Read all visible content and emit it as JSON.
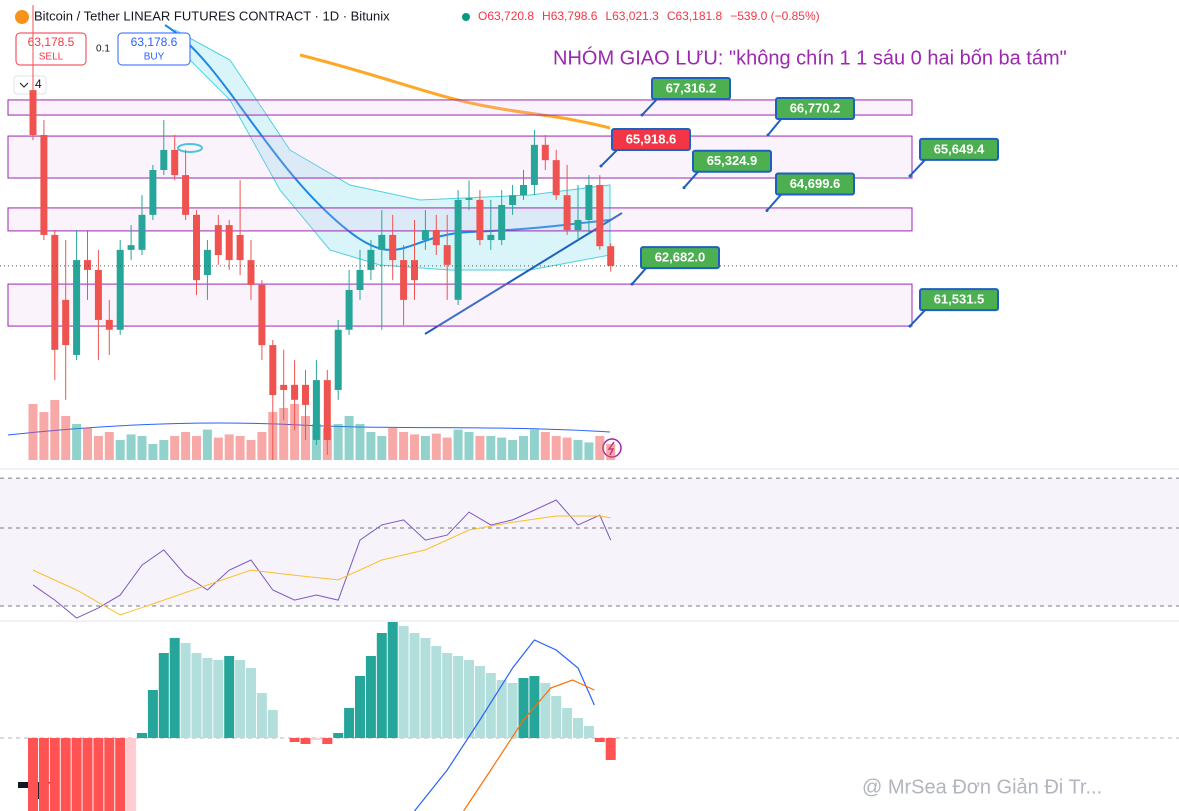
{
  "header": {
    "symbol": "Bitcoin / Tether LINEAR FUTURES CONTRACT · 1D · Bitunix",
    "ohlc": [
      "O63,720.8",
      "H63,798.6",
      "L63,021.3",
      "C63,181.8",
      "−539.0 (−0.85%)"
    ]
  },
  "trade": {
    "sell_price": "63,178.5",
    "sell": "SELL",
    "spread": "0.1",
    "buy_price": "63,178.6",
    "buy": "BUY"
  },
  "interval_control": "4",
  "annotation": "NHÓM GIAO LƯU: \"không chín 1 1 sáu 0 hai bốn ba tám\"",
  "watermark": "@ MrSea Đơn Giản Đi Tr...",
  "chart_data": [
    {
      "type": "candlestick",
      "colors": [
        "#26a69a",
        "#ef5350"
      ],
      "ylim": [
        57860,
        70470
      ],
      "open": [
        68000,
        66770,
        64030,
        62250,
        60740,
        63340,
        63070,
        61700,
        61430,
        63620,
        63620,
        64580,
        65810,
        66360,
        65670,
        64580,
        62930,
        64300,
        64300,
        64030,
        63340,
        62660,
        61010,
        59920,
        59920,
        59920,
        58410,
        60050,
        59780,
        61430,
        62520,
        63070,
        63620,
        64030,
        63340,
        63340,
        63890,
        64165,
        63750,
        62250,
        64990,
        64990,
        63890,
        63890,
        64850,
        65120,
        65400,
        66500,
        66080,
        65120,
        64165,
        64440,
        65400,
        63720.8
      ],
      "high": [
        70330,
        67180,
        64165,
        63890,
        64165,
        64165,
        63620,
        62250,
        63890,
        64300,
        65120,
        65950,
        67180,
        66770,
        66360,
        64710,
        63890,
        64580,
        64440,
        65530,
        63890,
        62790,
        61150,
        60880,
        60600,
        60330,
        60600,
        60330,
        61700,
        63070,
        63620,
        63890,
        64710,
        64580,
        63750,
        64440,
        64710,
        64580,
        64580,
        65260,
        65530,
        65260,
        64990,
        65260,
        65400,
        65810,
        66910,
        66770,
        66360,
        65950,
        65400,
        65670,
        65670,
        63798.6
      ],
      "low": [
        66630,
        63890,
        60050,
        59510,
        60600,
        62250,
        60600,
        60740,
        61290,
        63340,
        63480,
        64440,
        65670,
        65530,
        64440,
        62380,
        62250,
        63210,
        63070,
        62930,
        62250,
        60600,
        57860,
        58960,
        58680,
        58410,
        58270,
        58000,
        59510,
        61290,
        62250,
        62790,
        61430,
        62790,
        61560,
        62250,
        63620,
        63480,
        62250,
        62110,
        64710,
        63750,
        63620,
        63750,
        64580,
        64990,
        65120,
        65810,
        64990,
        64030,
        63890,
        64030,
        63620,
        63021.3
      ],
      "close": [
        66770,
        64030,
        60880,
        61010,
        63340,
        63070,
        61700,
        61430,
        63620,
        63750,
        64580,
        65810,
        66360,
        65670,
        64580,
        62790,
        63620,
        63480,
        63340,
        63340,
        62660,
        61010,
        59640,
        59780,
        59510,
        59370,
        60050,
        58410,
        61430,
        62520,
        63070,
        63620,
        64030,
        63340,
        62250,
        62790,
        64165,
        63750,
        63210,
        64990,
        65040,
        63890,
        64030,
        64850,
        65120,
        65400,
        66500,
        66080,
        65120,
        64165,
        64440,
        65400,
        63720.8,
        63181.8
      ],
      "zones": [
        [
          67316.2,
          67730
        ],
        [
          65590,
          66740
        ],
        [
          64140,
          64770
        ],
        [
          61531.5,
          62682
        ]
      ],
      "price_labels": [
        {
          "value": 67316.2,
          "label": "67,316.2",
          "color": "#4caf50"
        },
        {
          "value": 66770.2,
          "label": "66,770.2",
          "color": "#4caf50"
        },
        {
          "value": 65918.6,
          "label": "65,918.6",
          "color": "#f23645"
        },
        {
          "value": 65649.4,
          "label": "65,649.4",
          "color": "#4caf50"
        },
        {
          "value": 65324.9,
          "label": "65,324.9",
          "color": "#4caf50"
        },
        {
          "value": 64699.6,
          "label": "64,699.6",
          "color": "#4caf50"
        },
        {
          "value": 62682.0,
          "label": "62,682.0",
          "color": "#4caf50"
        },
        {
          "value": 61531.5,
          "label": "61,531.5",
          "color": "#4caf50"
        }
      ]
    },
    {
      "type": "bar",
      "colors": [
        "rgba(38,166,154,0.5)",
        "rgba(239,83,80,0.5)"
      ],
      "ylim": [
        0,
        100
      ],
      "values": [
        70,
        60,
        75,
        55,
        45,
        40,
        30,
        35,
        25,
        32,
        30,
        20,
        25,
        30,
        35,
        30,
        38,
        28,
        32,
        30,
        25,
        35,
        60,
        65,
        70,
        55,
        45,
        40,
        45,
        55,
        45,
        35,
        30,
        40,
        35,
        32,
        30,
        33,
        28,
        38,
        35,
        30,
        30,
        28,
        25,
        30,
        38,
        35,
        30,
        28,
        25,
        22,
        30,
        20
      ]
    },
    {
      "type": "line",
      "ylim": [
        26.4,
        64.9
      ],
      "levels": [
        30,
        50,
        62.8
      ],
      "series": [
        {
          "color": "#7e57c2",
          "x": [
            0,
            2,
            4,
            6,
            8,
            10,
            12,
            14,
            16,
            18,
            20,
            22,
            24,
            26,
            28,
            30,
            32,
            34,
            36,
            38,
            40,
            42,
            44,
            46,
            48,
            50,
            52,
            53
          ],
          "values": [
            35.4,
            31.5,
            26.9,
            29.5,
            32.8,
            40.5,
            44.4,
            37.9,
            34.1,
            39.2,
            41.8,
            34.1,
            31.5,
            32.8,
            31.5,
            46.9,
            50.8,
            52.1,
            46.9,
            48.2,
            54.1,
            50.8,
            52.1,
            54.6,
            57.2,
            50.8,
            53.3,
            46.9
          ]
        },
        {
          "color": "#fbc02d",
          "x": [
            0,
            4,
            8,
            12,
            16,
            20,
            24,
            28,
            32,
            36,
            40,
            44,
            48,
            52,
            53
          ],
          "values": [
            39.2,
            34.1,
            27.7,
            31.5,
            35.4,
            39.2,
            37.9,
            36.7,
            41.8,
            44.4,
            49.5,
            51.5,
            53.1,
            53.1,
            52.6
          ]
        }
      ]
    },
    {
      "type": "macd",
      "ylim": [
        -73,
        116
      ],
      "palette": [
        "#26a69a",
        "#b2dfdb",
        "#ff5252",
        "#ffcdd2"
      ],
      "values": [
        -80,
        -80,
        -80,
        -80,
        -80,
        -80,
        -80,
        -80,
        -80,
        -75,
        5,
        48,
        85,
        100,
        95,
        85,
        80,
        78,
        82,
        78,
        70,
        45,
        28,
        0,
        -4,
        -6,
        -2,
        -6,
        5,
        30,
        62,
        82,
        105,
        118,
        112,
        105,
        100,
        92,
        85,
        82,
        78,
        72,
        65,
        58,
        55,
        60,
        62,
        55,
        42,
        30,
        20,
        12,
        -4,
        -22
      ],
      "series": [
        {
          "color": "#2962ff",
          "x": [
            35,
            38,
            41,
            44,
            46,
            48,
            50,
            51.5
          ],
          "values": [
            -73,
            -32,
            18,
            70,
            98,
            88,
            70,
            33
          ]
        },
        {
          "color": "#ff6d00",
          "x": [
            39.5,
            42,
            45,
            47.5,
            49.5,
            51.5
          ],
          "values": [
            -73,
            -32,
            18,
            50,
            58,
            48
          ]
        }
      ]
    }
  ]
}
